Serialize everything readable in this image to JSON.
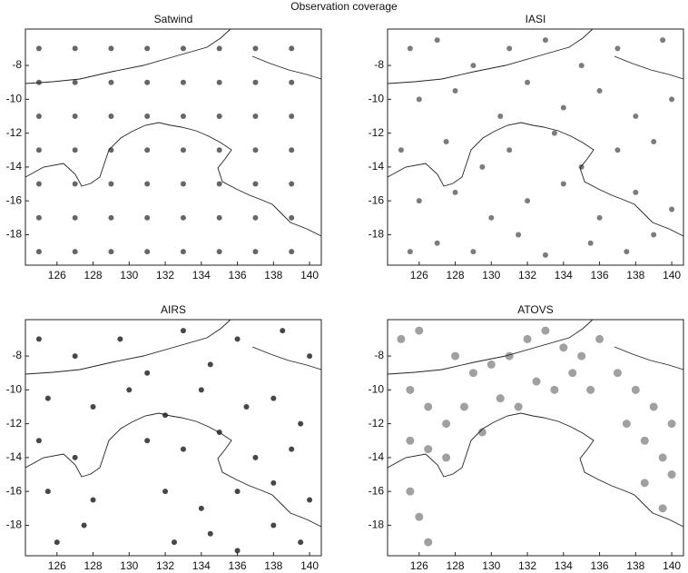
{
  "title": "Observation coverage",
  "chart_data": [
    {
      "type": "scatter",
      "title": "Satwind",
      "color": "#555555",
      "xlim": [
        124.25,
        140.65
      ],
      "ylim": [
        -19.8,
        -5.85
      ],
      "xticks": [
        126,
        128,
        130,
        132,
        134,
        136,
        138,
        140
      ],
      "yticks": [
        -8,
        -10,
        -12,
        -14,
        -16,
        -18
      ],
      "x": [
        125,
        127,
        129,
        131,
        133,
        135,
        137,
        139,
        125,
        127,
        129,
        131,
        133,
        135,
        137,
        139,
        125,
        127,
        129,
        131,
        133,
        135,
        137,
        139,
        125,
        127,
        129,
        131,
        133,
        135,
        137,
        139,
        125,
        127,
        129,
        131,
        133,
        135,
        137,
        139,
        125,
        127,
        129,
        131,
        133,
        135,
        137,
        139,
        125,
        127,
        129,
        131,
        133,
        135,
        137,
        139
      ],
      "y": [
        -7,
        -7,
        -7,
        -7,
        -7,
        -7,
        -7,
        -7,
        -9,
        -9,
        -9,
        -9,
        -9,
        -9,
        -9,
        -9,
        -11,
        -11,
        -11,
        -11,
        -11,
        -11,
        -11,
        -11,
        -13,
        -13,
        -13,
        -13,
        -13,
        -13,
        -13,
        -13,
        -15,
        -15,
        -15,
        -15,
        -15,
        -15,
        -15,
        -15,
        -17,
        -17,
        -17,
        -17,
        -17,
        -17,
        -17,
        -17,
        -19,
        -19,
        -19,
        -19,
        -19,
        -19,
        -19,
        -19
      ]
    },
    {
      "type": "scatter",
      "title": "IASI",
      "color": "#6e6e6e",
      "xlim": [
        124.25,
        140.65
      ],
      "ylim": [
        -19.8,
        -5.85
      ],
      "xticks": [
        126,
        128,
        130,
        132,
        134,
        136,
        138,
        140
      ],
      "yticks": [
        -8,
        -10,
        -12,
        -14,
        -16,
        -18
      ],
      "x": [
        125.5,
        127,
        129,
        131,
        133,
        135,
        137,
        139.5,
        126,
        128,
        130.5,
        132,
        134,
        136,
        138,
        140,
        125,
        127.5,
        129.5,
        131,
        133.5,
        135,
        137,
        139,
        126,
        128,
        130,
        132,
        134,
        136,
        138,
        140,
        125.5,
        127,
        129,
        131.5,
        133,
        135.5,
        137.5,
        139
      ],
      "y": [
        -7,
        -6.5,
        -8,
        -7,
        -6.5,
        -8,
        -7,
        -6.5,
        -10,
        -9.5,
        -11,
        -9,
        -10.5,
        -9.5,
        -11,
        -10,
        -13,
        -12.5,
        -14,
        -13,
        -12,
        -14,
        -13,
        -12.5,
        -16,
        -15.5,
        -17,
        -16,
        -15,
        -17,
        -15.5,
        -16.5,
        -19,
        -18.5,
        -19,
        -18,
        -19.2,
        -18.5,
        -19,
        -18
      ]
    },
    {
      "type": "scatter",
      "title": "AIRS",
      "color": "#333333",
      "xlim": [
        124.25,
        140.65
      ],
      "ylim": [
        -19.8,
        -5.85
      ],
      "xticks": [
        126,
        128,
        130,
        132,
        134,
        136,
        138,
        140
      ],
      "yticks": [
        -8,
        -10,
        -12,
        -14,
        -16,
        -18
      ],
      "x": [
        125,
        127,
        129.5,
        131,
        133,
        134.5,
        136,
        138.5,
        140,
        125.5,
        128,
        130,
        132,
        134,
        136.5,
        138,
        139.5,
        125,
        127,
        131,
        133,
        135,
        137,
        139,
        125.5,
        128,
        132,
        134,
        136,
        138,
        140,
        126,
        127.5,
        132.5,
        134.5,
        136,
        138,
        139.5
      ],
      "y": [
        -7,
        -8,
        -7,
        -9,
        -6.5,
        -8.5,
        -7,
        -6.5,
        -8,
        -10.5,
        -11,
        -10,
        -11.5,
        -10,
        -11,
        -10.5,
        -12,
        -13,
        -14,
        -13,
        -13.5,
        -12.5,
        -14,
        -13.5,
        -16,
        -16.5,
        -16,
        -17,
        -16,
        -15.5,
        -16.5,
        -19,
        -18,
        -19,
        -18.5,
        -19.5,
        -18,
        -19
      ]
    },
    {
      "type": "scatter",
      "title": "ATOVS",
      "color": "#777777",
      "xlim": [
        124.25,
        140.65
      ],
      "ylim": [
        -19.8,
        -5.85
      ],
      "xticks": [
        126,
        128,
        130,
        132,
        134,
        136,
        138,
        140
      ],
      "yticks": [
        -8,
        -10,
        -12,
        -14,
        -16,
        -18
      ],
      "x": [
        125,
        126,
        128,
        129,
        130,
        131,
        132,
        133,
        134,
        135,
        136,
        137,
        138,
        139,
        140,
        125.5,
        126.5,
        127.5,
        128.5,
        129.5,
        130.5,
        131.5,
        132.5,
        133.5,
        134.5,
        135.5,
        137.5,
        138.5,
        139.5,
        140,
        138.5,
        139.5,
        125.5,
        126.5,
        127.5,
        125.5,
        126,
        126.5
      ],
      "y": [
        -7,
        -6.5,
        -8,
        -9,
        -8.5,
        -8,
        -7,
        -6.5,
        -7.5,
        -8,
        -7,
        -9,
        -10,
        -11,
        -12,
        -10,
        -11,
        -12,
        -11,
        -12.5,
        -10.5,
        -11,
        -9.5,
        -10,
        -9,
        -10,
        -12,
        -13,
        -14,
        -15,
        -15.5,
        -17,
        -13,
        -13.5,
        -14,
        -16,
        -17.5,
        -19
      ]
    }
  ]
}
